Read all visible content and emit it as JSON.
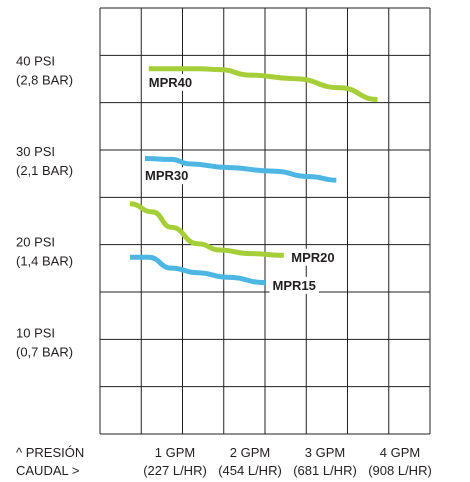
{
  "chart_data": {
    "type": "line",
    "title": "",
    "xlabel": "CAUDAL >",
    "ylabel": "^ PRESIÓN",
    "xlim": [
      0,
      4.4
    ],
    "ylim": [
      0,
      47
    ],
    "grid": true,
    "legend": "inline labels",
    "x_ticks": [
      {
        "value": 1,
        "line1": "1 GPM",
        "line2": "(227 L/HR)"
      },
      {
        "value": 2,
        "line1": "2 GPM",
        "line2": "(454 L/HR)"
      },
      {
        "value": 3,
        "line1": "3 GPM",
        "line2": "(681 L/HR)"
      },
      {
        "value": 4,
        "line1": "4 GPM",
        "line2": "(908 L/HR)"
      }
    ],
    "y_ticks": [
      {
        "value": 40,
        "line1": "40 PSI",
        "line2": "(2,8 BAR)"
      },
      {
        "value": 30,
        "line1": "30 PSI",
        "line2": "(2,1 BAR)"
      },
      {
        "value": 20,
        "line1": "20 PSI",
        "line2": "(1,4 BAR)"
      },
      {
        "value": 10,
        "line1": "10 PSI",
        "line2": "(0,7 BAR)"
      }
    ],
    "series": [
      {
        "name": "MPR40",
        "color": "#a6ce39",
        "points": [
          [
            0.65,
            40.3
          ],
          [
            1.3,
            40.3
          ],
          [
            1.6,
            40.2
          ],
          [
            2.0,
            39.6
          ],
          [
            2.6,
            39.2
          ],
          [
            3.2,
            38.2
          ],
          [
            3.7,
            36.9
          ]
        ],
        "label_anchor": [
          0.65,
          38.3
        ]
      },
      {
        "name": "MPR30",
        "color": "#4eb6e3",
        "points": [
          [
            0.6,
            30.4
          ],
          [
            0.95,
            30.3
          ],
          [
            1.2,
            29.8
          ],
          [
            1.7,
            29.4
          ],
          [
            2.3,
            29.0
          ],
          [
            2.8,
            28.4
          ],
          [
            3.15,
            28.0
          ]
        ],
        "label_anchor": [
          0.6,
          28.0
        ]
      },
      {
        "name": "MPR20",
        "color": "#a6ce39",
        "points": [
          [
            0.4,
            25.4
          ],
          [
            0.7,
            24.5
          ],
          [
            0.95,
            22.8
          ],
          [
            1.3,
            21.0
          ],
          [
            1.6,
            20.3
          ],
          [
            2.0,
            19.9
          ],
          [
            2.45,
            19.7
          ]
        ],
        "label_anchor": [
          2.55,
          19.0
        ]
      },
      {
        "name": "MPR15",
        "color": "#4eb6e3",
        "points": [
          [
            0.4,
            19.5
          ],
          [
            0.65,
            19.5
          ],
          [
            0.95,
            18.3
          ],
          [
            1.3,
            17.8
          ],
          [
            1.7,
            17.3
          ],
          [
            2.2,
            16.7
          ]
        ],
        "label_anchor": [
          2.3,
          15.9
        ]
      }
    ]
  }
}
